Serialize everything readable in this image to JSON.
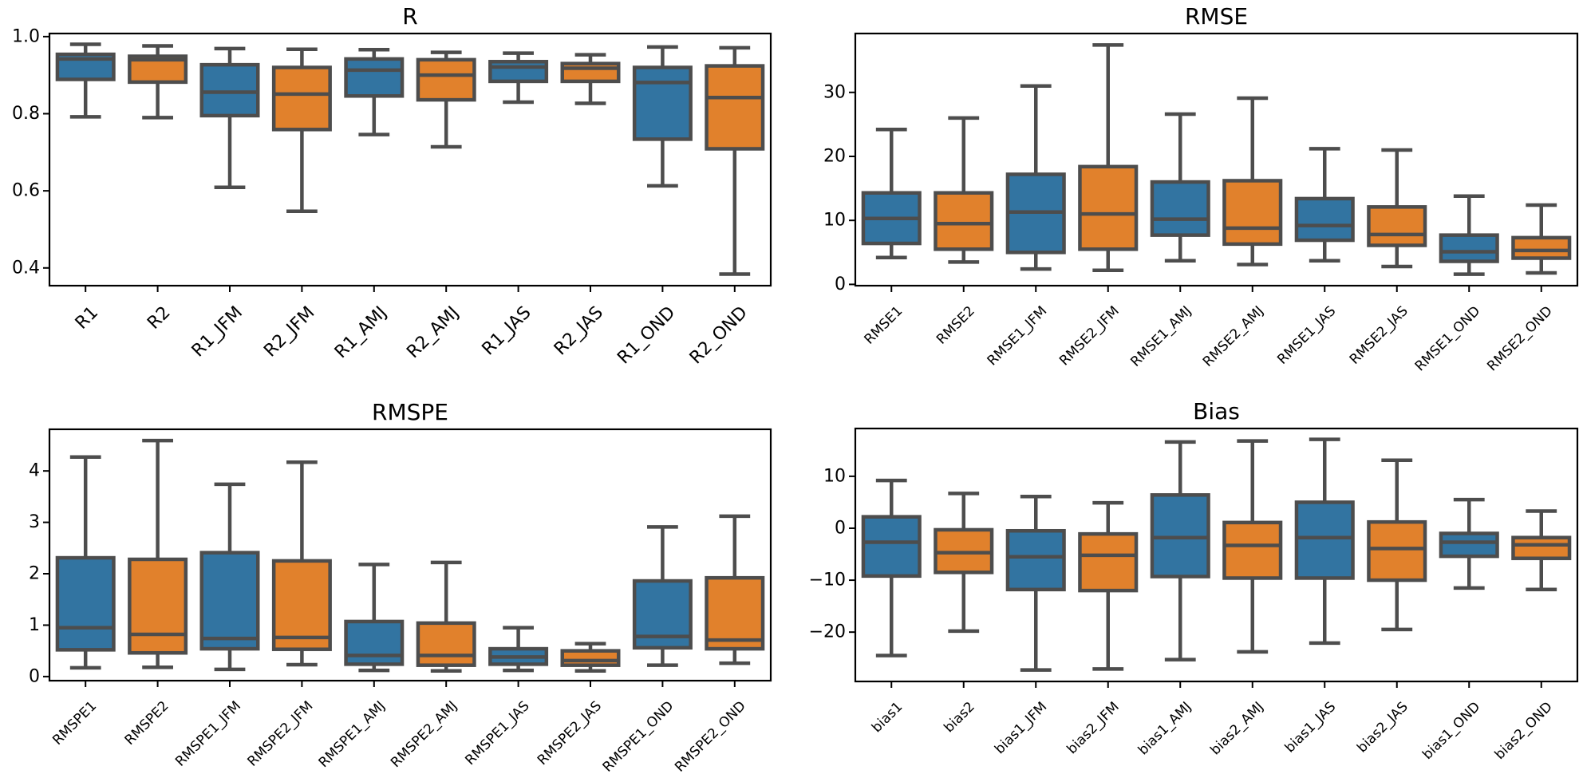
{
  "figure": {
    "colors": {
      "series1": "#3274a1",
      "series2": "#e1812c",
      "edge": "#4d4d4d"
    }
  },
  "chart_data": [
    {
      "id": "r",
      "type": "boxplot",
      "title": "R",
      "xlabel": "",
      "ylabel": "",
      "ylim": [
        0.354,
        1.008
      ],
      "yticks": [
        0.4,
        0.6,
        0.8,
        1.0
      ],
      "ytick_labels": [
        "0.4",
        "0.6",
        "0.8",
        "1.0"
      ],
      "small_xlabels": false,
      "categories": [
        "R1",
        "R2",
        "R1_JFM",
        "R2_JFM",
        "R1_AMJ",
        "R2_AMJ",
        "R1_JAS",
        "R2_JAS",
        "R1_OND",
        "R2_OND"
      ],
      "series_of_category": [
        1,
        2,
        1,
        2,
        1,
        2,
        1,
        2,
        1,
        2
      ],
      "boxes": [
        {
          "whislo": 0.792,
          "q1": 0.889,
          "med": 0.942,
          "q3": 0.954,
          "whishi": 0.98
        },
        {
          "whislo": 0.79,
          "q1": 0.882,
          "med": 0.94,
          "q3": 0.949,
          "whishi": 0.976
        },
        {
          "whislo": 0.609,
          "q1": 0.795,
          "med": 0.856,
          "q3": 0.927,
          "whishi": 0.969
        },
        {
          "whislo": 0.547,
          "q1": 0.759,
          "med": 0.851,
          "q3": 0.92,
          "whishi": 0.967
        },
        {
          "whislo": 0.746,
          "q1": 0.846,
          "med": 0.913,
          "q3": 0.942,
          "whishi": 0.966
        },
        {
          "whislo": 0.714,
          "q1": 0.836,
          "med": 0.9,
          "q3": 0.94,
          "whishi": 0.959
        },
        {
          "whislo": 0.83,
          "q1": 0.884,
          "med": 0.921,
          "q3": 0.935,
          "whishi": 0.957
        },
        {
          "whislo": 0.827,
          "q1": 0.884,
          "med": 0.918,
          "q3": 0.93,
          "whishi": 0.953
        },
        {
          "whislo": 0.613,
          "q1": 0.734,
          "med": 0.881,
          "q3": 0.92,
          "whishi": 0.973
        },
        {
          "whislo": 0.384,
          "q1": 0.709,
          "med": 0.842,
          "q3": 0.924,
          "whishi": 0.971
        }
      ]
    },
    {
      "id": "rmse",
      "type": "boxplot",
      "title": "RMSE",
      "xlabel": "",
      "ylabel": "",
      "ylim": [
        -0.2,
        39.2
      ],
      "yticks": [
        0,
        10,
        20,
        30
      ],
      "ytick_labels": [
        "0",
        "10",
        "20",
        "30"
      ],
      "small_xlabels": true,
      "categories": [
        "RMSE1",
        "RMSE2",
        "RMSE1_JFM",
        "RMSE2_JFM",
        "RMSE1_AMJ",
        "RMSE2_AMJ",
        "RMSE1_JAS",
        "RMSE2_JAS",
        "RMSE1_OND",
        "RMSE2_OND"
      ],
      "series_of_category": [
        1,
        2,
        1,
        2,
        1,
        2,
        1,
        2,
        1,
        2
      ],
      "boxes": [
        {
          "whislo": 4.2,
          "q1": 6.4,
          "med": 10.3,
          "q3": 14.3,
          "whishi": 24.2
        },
        {
          "whislo": 3.5,
          "q1": 5.5,
          "med": 9.5,
          "q3": 14.3,
          "whishi": 26.0
        },
        {
          "whislo": 2.4,
          "q1": 5.0,
          "med": 11.3,
          "q3": 17.2,
          "whishi": 31.0
        },
        {
          "whislo": 2.2,
          "q1": 5.5,
          "med": 11.0,
          "q3": 18.4,
          "whishi": 37.4
        },
        {
          "whislo": 3.7,
          "q1": 7.7,
          "med": 10.2,
          "q3": 16.0,
          "whishi": 26.6
        },
        {
          "whislo": 3.1,
          "q1": 6.3,
          "med": 8.8,
          "q3": 16.2,
          "whishi": 29.1
        },
        {
          "whislo": 3.7,
          "q1": 6.9,
          "med": 9.2,
          "q3": 13.4,
          "whishi": 21.2
        },
        {
          "whislo": 2.8,
          "q1": 6.1,
          "med": 7.8,
          "q3": 12.1,
          "whishi": 21.0
        },
        {
          "whislo": 1.6,
          "q1": 3.6,
          "med": 5.1,
          "q3": 7.7,
          "whishi": 13.8
        },
        {
          "whislo": 1.8,
          "q1": 4.1,
          "med": 5.3,
          "q3": 7.3,
          "whishi": 12.4
        }
      ]
    },
    {
      "id": "rmspe",
      "type": "boxplot",
      "title": "RMSPE",
      "xlabel": "",
      "ylabel": "",
      "ylim": [
        -0.08,
        4.81
      ],
      "yticks": [
        0,
        1,
        2,
        3,
        4
      ],
      "ytick_labels": [
        "0",
        "1",
        "2",
        "3",
        "4"
      ],
      "small_xlabels": true,
      "categories": [
        "RMSPE1",
        "RMSPE2",
        "RMSPE1_JFM",
        "RMSPE2_JFM",
        "RMSPE1_AMJ",
        "RMSPE2_AMJ",
        "RMSPE1_JAS",
        "RMSPE2_JAS",
        "RMSPE1_OND",
        "RMSPE2_OND"
      ],
      "series_of_category": [
        1,
        2,
        1,
        2,
        1,
        2,
        1,
        2,
        1,
        2
      ],
      "boxes": [
        {
          "whislo": 0.17,
          "q1": 0.52,
          "med": 0.95,
          "q3": 2.31,
          "whishi": 4.27
        },
        {
          "whislo": 0.18,
          "q1": 0.46,
          "med": 0.82,
          "q3": 2.28,
          "whishi": 4.59
        },
        {
          "whislo": 0.14,
          "q1": 0.54,
          "med": 0.74,
          "q3": 2.41,
          "whishi": 3.74
        },
        {
          "whislo": 0.23,
          "q1": 0.53,
          "med": 0.76,
          "q3": 2.25,
          "whishi": 4.17
        },
        {
          "whislo": 0.12,
          "q1": 0.24,
          "med": 0.41,
          "q3": 1.07,
          "whishi": 2.18
        },
        {
          "whislo": 0.11,
          "q1": 0.22,
          "med": 0.41,
          "q3": 1.04,
          "whishi": 2.22
        },
        {
          "whislo": 0.12,
          "q1": 0.24,
          "med": 0.38,
          "q3": 0.54,
          "whishi": 0.95
        },
        {
          "whislo": 0.11,
          "q1": 0.22,
          "med": 0.31,
          "q3": 0.5,
          "whishi": 0.64
        },
        {
          "whislo": 0.22,
          "q1": 0.56,
          "med": 0.78,
          "q3": 1.86,
          "whishi": 2.91
        },
        {
          "whislo": 0.26,
          "q1": 0.54,
          "med": 0.71,
          "q3": 1.92,
          "whishi": 3.12
        }
      ]
    },
    {
      "id": "bias",
      "type": "boxplot",
      "title": "Bias",
      "xlabel": "",
      "ylabel": "",
      "ylim": [
        -29.5,
        19.2
      ],
      "yticks": [
        -20,
        -10,
        0,
        10
      ],
      "ytick_labels": [
        "−20",
        "−10",
        "0",
        "10"
      ],
      "small_xlabels": true,
      "categories": [
        "bias1",
        "bias2",
        "bias1_JFM",
        "bias2_JFM",
        "bias1_AMJ",
        "bias2_AMJ",
        "bias1_JAS",
        "bias2_JAS",
        "bias1_OND",
        "bias2_OND"
      ],
      "series_of_category": [
        1,
        2,
        1,
        2,
        1,
        2,
        1,
        2,
        1,
        2
      ],
      "boxes": [
        {
          "whislo": -24.5,
          "q1": -9.2,
          "med": -2.7,
          "q3": 2.2,
          "whishi": 9.2
        },
        {
          "whislo": -19.8,
          "q1": -8.5,
          "med": -4.7,
          "q3": -0.3,
          "whishi": 6.7
        },
        {
          "whislo": -27.3,
          "q1": -11.8,
          "med": -5.5,
          "q3": -0.5,
          "whishi": 6.1
        },
        {
          "whislo": -27.1,
          "q1": -12.0,
          "med": -5.2,
          "q3": -1.1,
          "whishi": 4.9
        },
        {
          "whislo": -25.3,
          "q1": -9.3,
          "med": -1.8,
          "q3": 6.4,
          "whishi": 16.6
        },
        {
          "whislo": -23.8,
          "q1": -9.6,
          "med": -3.3,
          "q3": 1.1,
          "whishi": 16.8
        },
        {
          "whislo": -22.1,
          "q1": -9.6,
          "med": -1.8,
          "q3": 5.0,
          "whishi": 17.1
        },
        {
          "whislo": -19.5,
          "q1": -10.0,
          "med": -3.9,
          "q3": 1.2,
          "whishi": 13.1
        },
        {
          "whislo": -11.5,
          "q1": -5.4,
          "med": -2.7,
          "q3": -1.0,
          "whishi": 5.5
        },
        {
          "whislo": -11.8,
          "q1": -5.8,
          "med": -3.2,
          "q3": -1.8,
          "whishi": 3.3
        }
      ]
    }
  ]
}
